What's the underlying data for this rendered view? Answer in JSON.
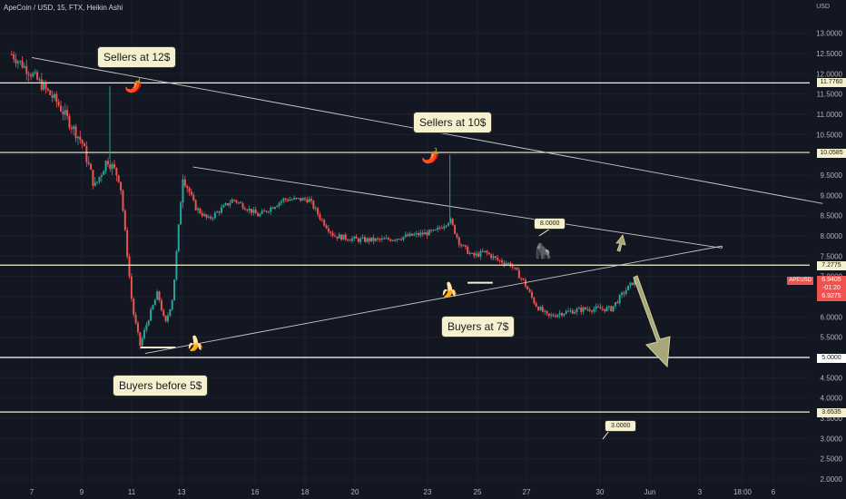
{
  "header": {
    "title": "ApeCoin / USD, 15, FTX, Heikin Ashi",
    "currency": "USD"
  },
  "annotations": {
    "sellers_12": "Sellers at 12$",
    "sellers_10": "Sellers at 10$",
    "buyers_7": "Buyers at 7$",
    "buyers_5": "Buyers before 5$",
    "target_8": "8.0000",
    "target_3": "3.0000"
  },
  "price_tags": {
    "l1": "11.7760",
    "l2": "10.0585",
    "l3": "7.2775",
    "l4": "5.0000",
    "l5": "3.6535",
    "cur_a": "6.9405",
    "cur_b": "-01:20",
    "cur_c": "6.9275",
    "symbol": "APEUSD"
  },
  "colors": {
    "background": "#131722",
    "up": "#26a69a",
    "down": "#ef5350",
    "level_line": "#f5f0cf",
    "arrow": "#a8a77a"
  },
  "chart_data": {
    "type": "candlestick",
    "title": "ApeCoin / USD, 15, FTX, Heikin Ashi",
    "y_ticks": [
      "13.0000",
      "12.5000",
      "12.0000",
      "11.5000",
      "11.0000",
      "10.5000",
      "10.0000",
      "9.5000",
      "9.0000",
      "8.5000",
      "8.0000",
      "7.5000",
      "7.0000",
      "6.5000",
      "6.0000",
      "5.5000",
      "5.0000",
      "4.5000",
      "4.0000",
      "3.5000",
      "3.0000",
      "2.5000",
      "2.0000"
    ],
    "x_ticks": [
      "7",
      "9",
      "11",
      "13",
      "16",
      "18",
      "20",
      "23",
      "25",
      "27",
      "30",
      "Jun",
      "3",
      "6",
      "18:00"
    ],
    "ylim": [
      2.0,
      14.0
    ],
    "horizontal_levels": [
      11.776,
      10.0585,
      7.2775,
      5.0,
      3.6535
    ],
    "close_path": [
      {
        "x": 0,
        "y": 13.9
      },
      {
        "x": 3,
        "y": 13.6
      },
      {
        "x": 5,
        "y": 13.2
      },
      {
        "x": 6,
        "y": 12.6
      },
      {
        "x": 7,
        "y": 12.0
      },
      {
        "x": 8,
        "y": 11.3
      },
      {
        "x": 9,
        "y": 10.3
      },
      {
        "x": 9.5,
        "y": 9.2
      },
      {
        "x": 10,
        "y": 9.9
      },
      {
        "x": 10.5,
        "y": 9.4
      },
      {
        "x": 11,
        "y": 6.2
      },
      {
        "x": 11.3,
        "y": 5.3
      },
      {
        "x": 11.6,
        "y": 5.9
      },
      {
        "x": 12,
        "y": 6.6
      },
      {
        "x": 12.3,
        "y": 5.8
      },
      {
        "x": 12.6,
        "y": 6.5
      },
      {
        "x": 13,
        "y": 9.5
      },
      {
        "x": 13.5,
        "y": 8.7
      },
      {
        "x": 14,
        "y": 8.4
      },
      {
        "x": 15,
        "y": 8.9
      },
      {
        "x": 16,
        "y": 8.5
      },
      {
        "x": 17,
        "y": 8.9
      },
      {
        "x": 18,
        "y": 8.9
      },
      {
        "x": 18.5,
        "y": 8.4
      },
      {
        "x": 19,
        "y": 8.0
      },
      {
        "x": 20,
        "y": 7.9
      },
      {
        "x": 21,
        "y": 7.9
      },
      {
        "x": 22,
        "y": 8.0
      },
      {
        "x": 23,
        "y": 8.1
      },
      {
        "x": 23.6,
        "y": 8.4
      },
      {
        "x": 24,
        "y": 7.8
      },
      {
        "x": 24.5,
        "y": 7.5
      },
      {
        "x": 25,
        "y": 7.6
      },
      {
        "x": 25.5,
        "y": 7.4
      },
      {
        "x": 26,
        "y": 7.3
      },
      {
        "x": 26.5,
        "y": 6.9
      },
      {
        "x": 27,
        "y": 6.3
      },
      {
        "x": 27.5,
        "y": 6.0
      },
      {
        "x": 28,
        "y": 6.1
      },
      {
        "x": 29,
        "y": 6.2
      },
      {
        "x": 30,
        "y": 6.2
      },
      {
        "x": 30.5,
        "y": 6.6
      },
      {
        "x": 31,
        "y": 6.95
      }
    ],
    "trendlines": [
      {
        "label": "descending resistance",
        "from": [
          7.0,
          12.4
        ],
        "to": [
          38.4,
          8.8
        ]
      },
      {
        "label": "lower descending",
        "from": [
          13.4,
          9.7
        ],
        "to": [
          34.4,
          7.7
        ]
      },
      {
        "label": "ascending support",
        "from": [
          11.5,
          5.1
        ],
        "to": [
          34.4,
          7.75
        ]
      }
    ]
  }
}
